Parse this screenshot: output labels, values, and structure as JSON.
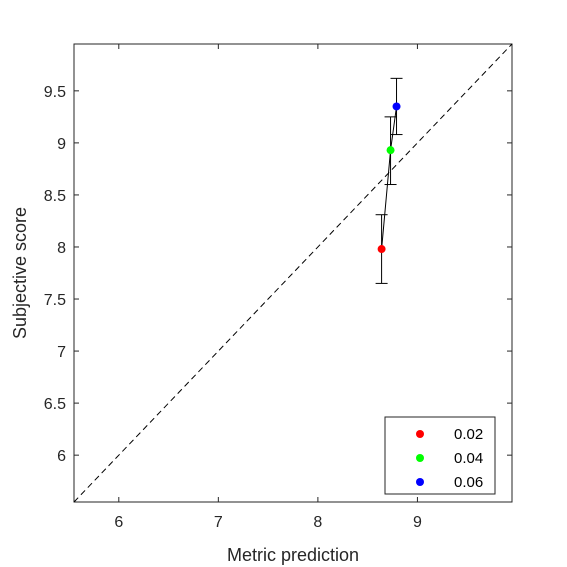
{
  "chart_data": {
    "type": "scatter",
    "title": "",
    "xlabel": "Metric prediction",
    "ylabel": "Subjective score",
    "xlim": [
      5.55,
      9.95
    ],
    "ylim": [
      5.55,
      9.95
    ],
    "xticks": [
      6,
      7,
      8,
      9
    ],
    "yticks": [
      6,
      6.5,
      7,
      7.5,
      8,
      8.5,
      9,
      9.5
    ],
    "xtick_labels": [
      "6",
      "7",
      "8",
      "9"
    ],
    "ytick_labels": [
      "6",
      "6.5",
      "7",
      "7.5",
      "8",
      "8.5",
      "9",
      "9.5"
    ],
    "grid": false,
    "legend_position": "bottom-right",
    "reference_line": "y = x (dashed)",
    "connect_points": true,
    "series": [
      {
        "name": "0.02",
        "x": 8.64,
        "y": 7.98,
        "yerr_low": 7.65,
        "yerr_high": 8.31,
        "color": "#ff0000"
      },
      {
        "name": "0.04",
        "x": 8.73,
        "y": 8.93,
        "yerr_low": 8.6,
        "yerr_high": 9.25,
        "color": "#00ff00"
      },
      {
        "name": "0.06",
        "x": 8.79,
        "y": 9.35,
        "yerr_low": 9.08,
        "yerr_high": 9.62,
        "color": "#0000ff"
      }
    ]
  }
}
